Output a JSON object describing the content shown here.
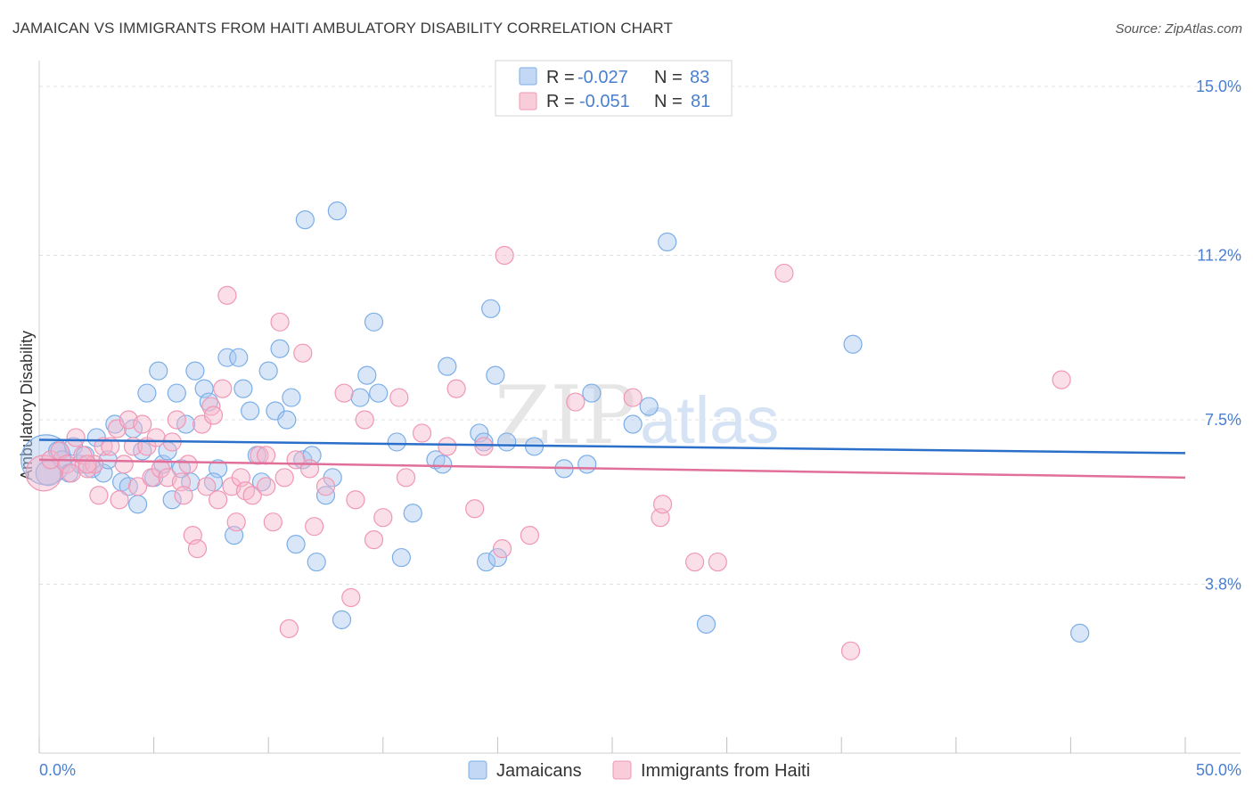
{
  "title": "JAMAICAN VS IMMIGRANTS FROM HAITI AMBULATORY DISABILITY CORRELATION CHART",
  "source": "Source: ZipAtlas.com",
  "watermark": {
    "zip": "ZIP",
    "atlas": "atlas"
  },
  "colors": {
    "blue_fill": "#aac8f0",
    "blue_stroke": "#7aaee8",
    "blue_line": "#2a6fc9",
    "pink_fill": "#f7b7cb",
    "pink_stroke": "#f096b4",
    "pink_line": "#e0709a",
    "grid": "#e0e0e0",
    "tick_text": "#4a7fd0"
  },
  "legend_top": {
    "rows": [
      {
        "r_label": "R =",
        "r_value": "-0.027",
        "n_label": "N =",
        "n_value": "83",
        "color": "blue"
      },
      {
        "r_label": "R =",
        "r_value": "-0.051",
        "n_label": "N =",
        "n_value": "81",
        "color": "pink"
      }
    ]
  },
  "chart_data": {
    "type": "scatter",
    "title": "JAMAICAN VS IMMIGRANTS FROM HAITI AMBULATORY DISABILITY CORRELATION CHART",
    "xlabel": "",
    "ylabel": "Ambulatory Disability",
    "xlim": [
      0,
      50
    ],
    "ylim": [
      0,
      15.5
    ],
    "x_tick_labels": [
      "0.0%",
      "50.0%"
    ],
    "y_ticks": [
      {
        "value": 3.8,
        "label": "3.8%"
      },
      {
        "value": 7.5,
        "label": "7.5%"
      },
      {
        "value": 11.2,
        "label": "11.2%"
      },
      {
        "value": 15.0,
        "label": "15.0%"
      }
    ],
    "grid": true,
    "legend_position": "bottom-center",
    "series": [
      {
        "name": "Jamaicans",
        "color": "blue",
        "trend": {
          "x": [
            0,
            50
          ],
          "y": [
            7.05,
            6.75
          ]
        },
        "points": [
          [
            0.3,
            6.6,
            28
          ],
          [
            0.4,
            6.3,
            14
          ],
          [
            0.8,
            6.8,
            10
          ],
          [
            1.0,
            6.6,
            10
          ],
          [
            1.3,
            6.3,
            10
          ],
          [
            1.5,
            6.9,
            10
          ],
          [
            1.8,
            6.5,
            10
          ],
          [
            2.0,
            6.7,
            10
          ],
          [
            2.3,
            6.4,
            10
          ],
          [
            2.5,
            7.1,
            10
          ],
          [
            2.8,
            6.3,
            10
          ],
          [
            3.0,
            6.6,
            10
          ],
          [
            3.3,
            7.4,
            10
          ],
          [
            3.6,
            6.1,
            10
          ],
          [
            3.9,
            6.0,
            10
          ],
          [
            4.1,
            7.3,
            10
          ],
          [
            4.3,
            5.6,
            10
          ],
          [
            4.5,
            6.8,
            10
          ],
          [
            4.7,
            8.1,
            10
          ],
          [
            5.0,
            6.2,
            10
          ],
          [
            5.2,
            8.6,
            10
          ],
          [
            5.4,
            6.5,
            10
          ],
          [
            5.6,
            6.8,
            10
          ],
          [
            5.8,
            5.7,
            10
          ],
          [
            6.0,
            8.1,
            10
          ],
          [
            6.2,
            6.4,
            10
          ],
          [
            6.4,
            7.4,
            10
          ],
          [
            6.6,
            6.1,
            10
          ],
          [
            6.8,
            8.6,
            10
          ],
          [
            7.2,
            8.2,
            10
          ],
          [
            7.4,
            7.9,
            10
          ],
          [
            7.8,
            6.4,
            10
          ],
          [
            7.6,
            6.1,
            10
          ],
          [
            8.2,
            8.9,
            10
          ],
          [
            8.5,
            4.9,
            10
          ],
          [
            8.7,
            8.9,
            10
          ],
          [
            8.9,
            8.2,
            10
          ],
          [
            9.2,
            7.7,
            10
          ],
          [
            9.5,
            6.7,
            10
          ],
          [
            9.7,
            6.1,
            10
          ],
          [
            10.0,
            8.6,
            10
          ],
          [
            10.3,
            7.7,
            10
          ],
          [
            10.5,
            9.1,
            10
          ],
          [
            10.8,
            7.5,
            10
          ],
          [
            11.0,
            8.0,
            10
          ],
          [
            11.2,
            4.7,
            10
          ],
          [
            11.5,
            6.6,
            10
          ],
          [
            11.6,
            12.0,
            10
          ],
          [
            11.9,
            6.7,
            10
          ],
          [
            12.1,
            4.3,
            10
          ],
          [
            12.5,
            5.8,
            10
          ],
          [
            12.8,
            6.2,
            10
          ],
          [
            13.0,
            12.2,
            10
          ],
          [
            13.2,
            3.0,
            10
          ],
          [
            14.0,
            8.0,
            10
          ],
          [
            14.3,
            8.5,
            10
          ],
          [
            14.6,
            9.7,
            10
          ],
          [
            14.8,
            8.1,
            10
          ],
          [
            15.6,
            7.0,
            10
          ],
          [
            15.8,
            4.4,
            10
          ],
          [
            16.3,
            5.4,
            10
          ],
          [
            17.3,
            6.6,
            10
          ],
          [
            17.6,
            6.5,
            10
          ],
          [
            17.8,
            8.7,
            10
          ],
          [
            19.2,
            7.2,
            10
          ],
          [
            19.4,
            7.0,
            10
          ],
          [
            19.5,
            4.3,
            10
          ],
          [
            19.7,
            10.0,
            10
          ],
          [
            19.9,
            8.5,
            10
          ],
          [
            20.0,
            4.4,
            10
          ],
          [
            20.4,
            7.0,
            10
          ],
          [
            21.6,
            6.9,
            10
          ],
          [
            22.9,
            6.4,
            10
          ],
          [
            23.9,
            6.5,
            10
          ],
          [
            24.1,
            8.1,
            10
          ],
          [
            25.9,
            7.4,
            10
          ],
          [
            26.6,
            7.8,
            10
          ],
          [
            27.4,
            11.5,
            10
          ],
          [
            29.1,
            2.9,
            10
          ],
          [
            35.5,
            9.2,
            10
          ],
          [
            45.4,
            2.7,
            10
          ]
        ]
      },
      {
        "name": "Immigrants from Haiti",
        "color": "pink",
        "trend": {
          "x": [
            0,
            50
          ],
          "y": [
            6.6,
            6.2
          ]
        },
        "points": [
          [
            0.2,
            6.3,
            20
          ],
          [
            0.5,
            6.6,
            10
          ],
          [
            0.9,
            6.8,
            10
          ],
          [
            1.2,
            6.5,
            10
          ],
          [
            1.4,
            6.3,
            10
          ],
          [
            1.6,
            7.1,
            10
          ],
          [
            1.9,
            6.7,
            10
          ],
          [
            2.1,
            6.4,
            10
          ],
          [
            2.4,
            6.5,
            10
          ],
          [
            2.6,
            5.8,
            10
          ],
          [
            2.8,
            6.9,
            10
          ],
          [
            3.1,
            6.9,
            10
          ],
          [
            3.4,
            7.3,
            10
          ],
          [
            3.5,
            5.7,
            10
          ],
          [
            3.7,
            6.5,
            10
          ],
          [
            3.9,
            7.5,
            10
          ],
          [
            4.1,
            6.9,
            10
          ],
          [
            4.3,
            6.0,
            10
          ],
          [
            4.5,
            7.4,
            10
          ],
          [
            4.7,
            6.9,
            10
          ],
          [
            4.9,
            6.2,
            10
          ],
          [
            5.1,
            7.1,
            10
          ],
          [
            5.3,
            6.4,
            10
          ],
          [
            5.6,
            6.2,
            10
          ],
          [
            5.8,
            7.0,
            10
          ],
          [
            6.0,
            7.5,
            10
          ],
          [
            6.2,
            6.1,
            10
          ],
          [
            6.3,
            5.8,
            10
          ],
          [
            6.5,
            6.5,
            10
          ],
          [
            6.7,
            4.9,
            10
          ],
          [
            6.9,
            4.6,
            10
          ],
          [
            7.1,
            7.4,
            10
          ],
          [
            7.3,
            6.0,
            10
          ],
          [
            7.5,
            7.8,
            10
          ],
          [
            7.6,
            7.6,
            10
          ],
          [
            7.8,
            5.7,
            10
          ],
          [
            8.0,
            8.2,
            10
          ],
          [
            8.2,
            10.3,
            10
          ],
          [
            8.4,
            6.0,
            10
          ],
          [
            8.6,
            5.2,
            10
          ],
          [
            8.8,
            6.2,
            10
          ],
          [
            9.0,
            5.9,
            10
          ],
          [
            9.3,
            5.8,
            10
          ],
          [
            9.6,
            6.7,
            10
          ],
          [
            9.9,
            6.7,
            10
          ],
          [
            10.2,
            5.2,
            10
          ],
          [
            10.5,
            9.7,
            10
          ],
          [
            10.7,
            6.2,
            10
          ],
          [
            10.9,
            2.8,
            10
          ],
          [
            11.2,
            6.6,
            10
          ],
          [
            11.5,
            9.0,
            10
          ],
          [
            11.8,
            6.4,
            10
          ],
          [
            12.0,
            5.1,
            10
          ],
          [
            12.5,
            6.0,
            10
          ],
          [
            13.3,
            8.1,
            10
          ],
          [
            13.6,
            3.5,
            10
          ],
          [
            13.8,
            5.7,
            10
          ],
          [
            14.2,
            7.5,
            10
          ],
          [
            14.6,
            4.8,
            10
          ],
          [
            15.0,
            5.3,
            10
          ],
          [
            15.7,
            8.0,
            10
          ],
          [
            16.0,
            6.2,
            10
          ],
          [
            16.7,
            7.2,
            10
          ],
          [
            17.8,
            6.9,
            10
          ],
          [
            18.2,
            8.2,
            10
          ],
          [
            19.0,
            5.5,
            10
          ],
          [
            19.4,
            6.9,
            10
          ],
          [
            20.2,
            4.6,
            10
          ],
          [
            20.3,
            11.2,
            10
          ],
          [
            21.4,
            4.9,
            10
          ],
          [
            23.4,
            7.9,
            10
          ],
          [
            25.9,
            8.0,
            10
          ],
          [
            27.1,
            5.3,
            10
          ],
          [
            27.2,
            5.6,
            10
          ],
          [
            28.6,
            4.3,
            10
          ],
          [
            29.6,
            4.3,
            10
          ],
          [
            32.5,
            10.8,
            10
          ],
          [
            35.4,
            2.3,
            10
          ],
          [
            44.6,
            8.4,
            10
          ],
          [
            9.9,
            6.0,
            10
          ],
          [
            2.1,
            6.5,
            10
          ]
        ]
      }
    ]
  },
  "bottom_legend": [
    {
      "label": "Jamaicans",
      "color": "blue"
    },
    {
      "label": "Immigrants from Haiti",
      "color": "pink"
    }
  ]
}
